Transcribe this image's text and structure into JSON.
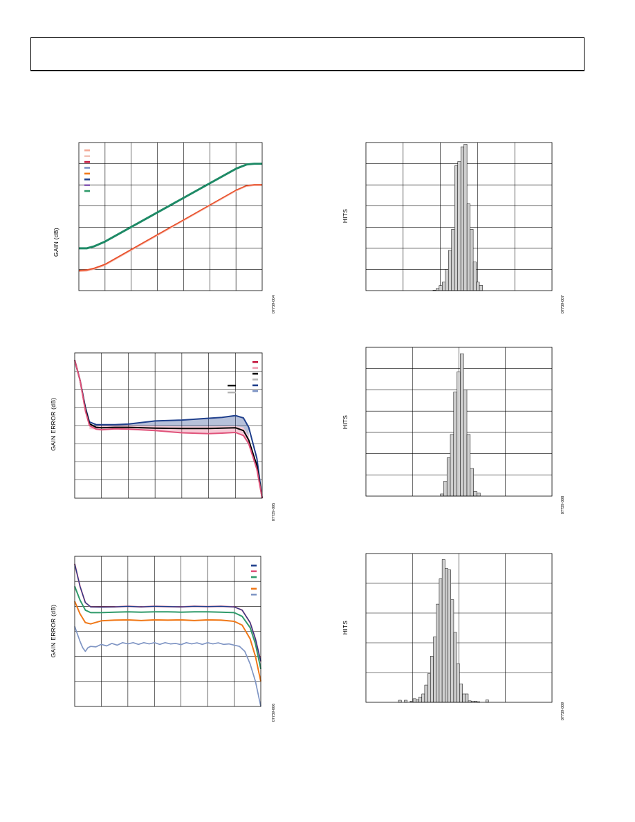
{
  "page": {
    "header_text": ""
  },
  "colors": {
    "grid": "#000000",
    "hist_fill": "#cfcfcf",
    "green": "#1e8a66",
    "red": "#e8502a",
    "navy": "#1f3f8c",
    "pink": "#e0527a",
    "black": "#000000",
    "gray": "#9aa3b5",
    "teal_green": "#2f9a6a",
    "orange": "#f07818",
    "slate": "#7f95c4"
  },
  "chart_data": [
    {
      "id": "gain-vs-input",
      "type": "line",
      "ylabel": "GAIN (dB)",
      "figure_number": "07739-004",
      "grid_cols": 7,
      "grid_rows": 7,
      "xlim": [
        0,
        7
      ],
      "ylim": [
        0,
        7
      ],
      "legend_swatches": [
        "#f4a996",
        "#f2c3b8",
        "#c4143c",
        "#7c93c4",
        "#f07818",
        "#1f3f8c",
        "#8a5fb6",
        "#2f9a6a"
      ],
      "series": [
        {
          "color": "#1e8a66",
          "width": 3,
          "x": [
            0,
            0.3,
            0.6,
            1.0,
            6.0,
            6.4,
            6.7,
            7.0
          ],
          "y": [
            2.0,
            2.0,
            2.1,
            2.32,
            5.76,
            5.96,
            6.0,
            6.0
          ]
        },
        {
          "color": "#e8502a",
          "width": 2,
          "x": [
            0,
            0.3,
            0.6,
            1.0,
            6.0,
            6.4,
            6.7,
            7.0
          ],
          "y": [
            0.95,
            0.97,
            1.06,
            1.24,
            4.74,
            4.96,
            5.0,
            5.0
          ]
        },
        {
          "color": "#f6b4a6",
          "width": 1,
          "x": [
            0,
            0.3,
            0.6,
            1.0,
            6.0,
            6.4,
            6.7,
            7.0
          ],
          "y": [
            0.9,
            0.92,
            1.01,
            1.19,
            4.7,
            4.92,
            4.96,
            4.96
          ]
        }
      ]
    },
    {
      "id": "hist-1",
      "type": "histogram",
      "ylabel": "HITS",
      "figure_number": "07739-007",
      "grid_cols": 5,
      "grid_rows": 7,
      "ymax": 7,
      "bins_start": 1.8,
      "bin_width": 0.0833,
      "counts": [
        0.02,
        0.1,
        0.24,
        0.4,
        1.0,
        1.9,
        2.9,
        5.9,
        6.1,
        6.8,
        6.92,
        4.1,
        2.9,
        1.35,
        0.4,
        0.25
      ]
    },
    {
      "id": "gain-error-1",
      "type": "line",
      "ylabel": "GAIN ERROR (dB)",
      "figure_number": "07739-005",
      "grid_cols": 7,
      "grid_rows": 8,
      "xlim": [
        0,
        7
      ],
      "ylim": [
        0,
        8
      ],
      "legend_swatches": [
        "#c4143c",
        "#f0a0b4",
        "#000000",
        "#b3b3b3",
        "#1f3f8c",
        "#7c93c4"
      ],
      "legend_swatches_2": [
        "#000000",
        "#b3b3b3"
      ],
      "bands": [
        {
          "color": "#e0527a",
          "opacity": 0.3,
          "x": [
            0.55,
            1,
            2,
            3,
            4,
            5,
            6,
            6.3,
            6.5
          ],
          "upper": [
            3.95,
            3.98,
            4.0,
            3.98,
            3.95,
            3.95,
            3.97,
            3.9,
            3.4
          ],
          "lower": [
            3.8,
            3.76,
            3.8,
            3.72,
            3.6,
            3.55,
            3.62,
            3.45,
            3.0
          ]
        },
        {
          "color": "#1f3f8c",
          "opacity": 0.32,
          "x": [
            0.55,
            1,
            2,
            3,
            4,
            5,
            6,
            6.3,
            6.5
          ],
          "upper": [
            4.05,
            4.05,
            4.08,
            4.25,
            4.3,
            4.4,
            4.55,
            4.42,
            3.9
          ],
          "lower": [
            3.95,
            3.98,
            4.0,
            3.98,
            3.95,
            3.95,
            3.97,
            3.9,
            3.4
          ]
        }
      ],
      "series": [
        {
          "color": "#1f3f8c",
          "width": 2,
          "x": [
            0,
            0.2,
            0.4,
            0.55,
            0.8,
            1,
            1.5,
            2,
            3,
            4,
            5,
            5.5,
            6,
            6.3,
            6.5,
            6.8,
            7
          ],
          "y": [
            7.6,
            6.5,
            5.0,
            4.2,
            4.05,
            4.05,
            4.05,
            4.08,
            4.25,
            4.3,
            4.4,
            4.45,
            4.55,
            4.42,
            3.9,
            2.2,
            0
          ]
        },
        {
          "color": "#000000",
          "width": 2,
          "x": [
            0,
            0.2,
            0.4,
            0.55,
            0.8,
            1,
            1.5,
            2,
            3,
            4,
            5,
            5.5,
            6,
            6.3,
            6.5,
            6.8,
            7
          ],
          "y": [
            7.6,
            6.5,
            4.9,
            4.1,
            3.9,
            3.88,
            3.9,
            3.9,
            3.86,
            3.84,
            3.84,
            3.86,
            3.88,
            3.72,
            3.2,
            1.8,
            0
          ]
        },
        {
          "color": "#e0527a",
          "width": 2,
          "x": [
            0,
            0.2,
            0.4,
            0.55,
            0.8,
            1,
            1.5,
            2,
            3,
            4,
            5,
            5.5,
            6,
            6.3,
            6.5,
            6.8,
            7
          ],
          "y": [
            7.6,
            6.5,
            4.8,
            4.0,
            3.8,
            3.76,
            3.82,
            3.8,
            3.72,
            3.6,
            3.55,
            3.58,
            3.62,
            3.45,
            3.0,
            1.6,
            0
          ]
        }
      ]
    },
    {
      "id": "hist-2",
      "type": "histogram",
      "ylabel": "HITS",
      "figure_number": "07739-008",
      "grid_cols": 4,
      "grid_rows": 7,
      "ymax": 7,
      "bins_start": 1.6,
      "bin_width": 0.0714,
      "counts": [
        0.1,
        0.7,
        1.8,
        2.9,
        4.9,
        5.85,
        6.7,
        5.0,
        2.9,
        1.3,
        0.22,
        0.15
      ]
    },
    {
      "id": "gain-error-2",
      "type": "line",
      "ylabel": "GAIN ERROR (dB)",
      "figure_number": "07739-006",
      "grid_cols": 7,
      "grid_rows": 6,
      "xlim": [
        0,
        7
      ],
      "ylim": [
        0,
        6
      ],
      "legend_swatches": [
        "#1f3f8c",
        "#e0527a",
        "#2f9a6a",
        "#ffffff",
        "#f07818",
        "#7f95c4"
      ],
      "series": [
        {
          "color": "#7f95c4",
          "width": 1.7,
          "x": [
            0,
            0.1,
            0.2,
            0.3,
            0.4,
            0.5,
            0.6,
            0.8,
            1.0,
            1.2,
            1.4,
            1.6,
            1.8,
            2.0,
            2.2,
            2.4,
            2.6,
            2.8,
            3.0,
            3.2,
            3.4,
            3.6,
            3.8,
            4.0,
            4.2,
            4.4,
            4.6,
            4.8,
            5.0,
            5.2,
            5.4,
            5.6,
            5.8,
            6.0,
            6.2,
            6.4,
            6.6,
            6.8,
            7.0
          ],
          "y": [
            3.2,
            2.9,
            2.6,
            2.35,
            2.2,
            2.35,
            2.4,
            2.38,
            2.48,
            2.42,
            2.52,
            2.45,
            2.55,
            2.5,
            2.55,
            2.48,
            2.55,
            2.5,
            2.55,
            2.48,
            2.55,
            2.5,
            2.52,
            2.47,
            2.55,
            2.5,
            2.54,
            2.48,
            2.55,
            2.5,
            2.54,
            2.48,
            2.5,
            2.45,
            2.4,
            2.2,
            1.7,
            1.0,
            0.0
          ]
        },
        {
          "color": "#f07818",
          "width": 2,
          "x": [
            0,
            0.2,
            0.4,
            0.6,
            1.0,
            1.5,
            2.0,
            2.5,
            3.0,
            3.5,
            4.0,
            4.5,
            5.0,
            5.5,
            6.0,
            6.3,
            6.6,
            6.8,
            7.0
          ],
          "y": [
            4.2,
            3.7,
            3.35,
            3.3,
            3.42,
            3.45,
            3.46,
            3.43,
            3.46,
            3.45,
            3.46,
            3.43,
            3.46,
            3.45,
            3.4,
            3.25,
            2.7,
            2.0,
            1.0
          ]
        },
        {
          "color": "#2f9a6a",
          "width": 2,
          "x": [
            0,
            0.2,
            0.4,
            0.6,
            1.0,
            1.5,
            2.0,
            2.5,
            3.0,
            3.5,
            4.0,
            4.5,
            5.0,
            5.5,
            6.0,
            6.3,
            6.6,
            6.8,
            7.0
          ],
          "y": [
            4.8,
            4.25,
            3.85,
            3.75,
            3.75,
            3.77,
            3.78,
            3.77,
            3.78,
            3.78,
            3.77,
            3.78,
            3.78,
            3.77,
            3.75,
            3.6,
            3.15,
            2.5,
            1.5
          ]
        },
        {
          "color": "#e0527a",
          "width": 2,
          "x": [
            0,
            0.2,
            0.4,
            0.6,
            1.0,
            1.5,
            2.0,
            2.5,
            3.0,
            3.5,
            4.0,
            4.5,
            5.0,
            5.5,
            6.0,
            6.3,
            6.6,
            6.8,
            7.0
          ],
          "y": [
            5.7,
            4.8,
            4.15,
            3.98,
            3.97,
            3.98,
            4.0,
            3.98,
            4.0,
            3.99,
            3.98,
            4.0,
            3.99,
            4.0,
            3.98,
            3.85,
            3.35,
            2.7,
            1.8
          ]
        },
        {
          "color": "#1f3f8c",
          "width": 1.3,
          "x": [
            0,
            0.2,
            0.4,
            0.6,
            1.0,
            1.5,
            2.0,
            2.5,
            3.0,
            3.5,
            4.0,
            4.5,
            5.0,
            5.5,
            6.0,
            6.3,
            6.6,
            6.8,
            7.0
          ],
          "y": [
            5.7,
            4.8,
            4.15,
            3.98,
            3.97,
            3.98,
            4.0,
            3.98,
            4.0,
            3.99,
            3.98,
            4.0,
            3.99,
            4.0,
            3.98,
            3.85,
            3.35,
            2.7,
            1.8
          ]
        }
      ]
    },
    {
      "id": "hist-3",
      "type": "histogram",
      "ylabel": "HITS",
      "figure_number": "07739-009",
      "grid_cols": 4,
      "grid_rows": 5,
      "ymax": 5,
      "bins_start": 0.7,
      "bin_width": 0.0625,
      "counts": [
        0.07,
        0,
        0.07,
        0,
        0.04,
        0.12,
        0.09,
        0.18,
        0.28,
        0.58,
        0.96,
        1.55,
        2.2,
        3.3,
        4.15,
        4.8,
        4.5,
        4.45,
        3.45,
        2.35,
        1.3,
        0.62,
        0.28,
        0.28,
        0.05,
        0.03,
        0.04,
        0.02,
        0,
        0,
        0.08
      ]
    }
  ]
}
